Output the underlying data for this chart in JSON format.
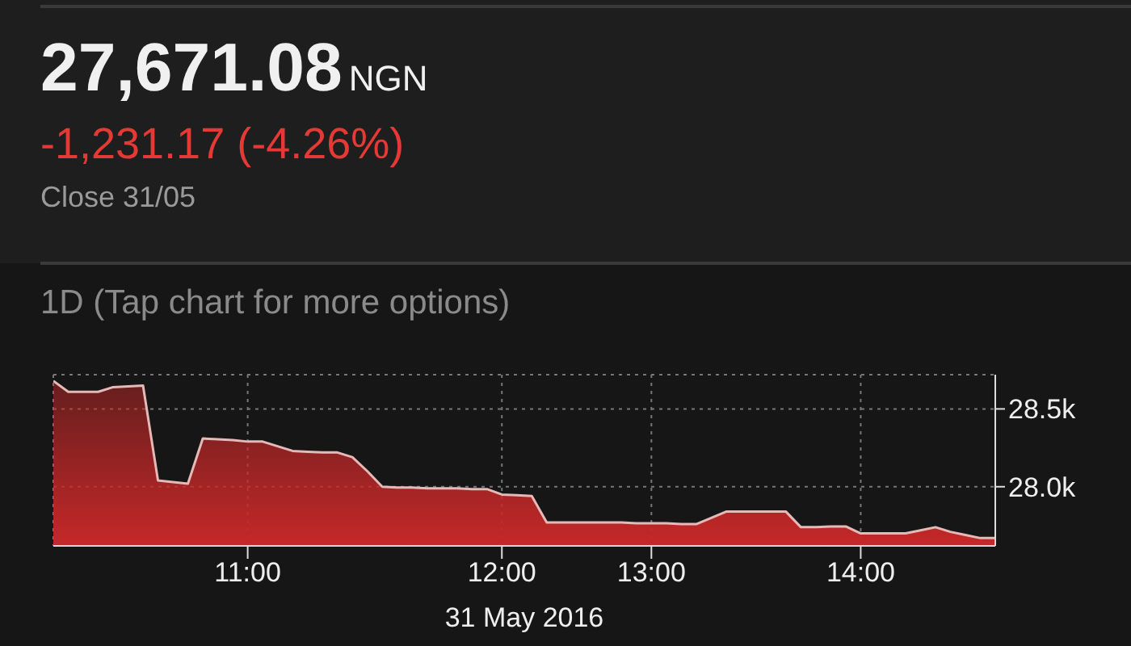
{
  "chart_data": {
    "type": "area",
    "title": "27,671.08",
    "subtitle": "1D (Tap chart for more options)",
    "annotations": [
      "NGN",
      "-1,231.17 (-4.26%)",
      "Close 31/05"
    ],
    "xlabel": "31 May 2016",
    "categories": [
      null,
      null,
      null,
      null,
      null,
      null,
      null,
      null,
      null,
      null,
      null,
      null,
      null,
      "11:00",
      null,
      null,
      null,
      null,
      null,
      null,
      null,
      null,
      null,
      null,
      null,
      null,
      null,
      null,
      null,
      null,
      "12:00",
      null,
      null,
      null,
      null,
      null,
      null,
      null,
      null,
      null,
      "13:00",
      null,
      null,
      null,
      null,
      null,
      null,
      null,
      null,
      null,
      null,
      null,
      null,
      null,
      "14:00",
      null,
      null,
      null,
      null,
      null,
      null,
      null,
      null,
      null
    ],
    "series": [
      {
        "color": "#c62828",
        "values": [
          28680,
          28610,
          28610,
          28610,
          28640,
          28645,
          28650,
          28040,
          28030,
          28020,
          28310,
          28305,
          28300,
          28290,
          28290,
          28260,
          28230,
          28225,
          28220,
          28220,
          28190,
          28100,
          28000,
          27995,
          27995,
          27990,
          27990,
          27990,
          27985,
          27985,
          27950,
          27945,
          27940,
          27770,
          27770,
          27770,
          27770,
          27770,
          27770,
          27765,
          27765,
          27765,
          27760,
          27760,
          27800,
          27840,
          27840,
          27840,
          27840,
          27840,
          27740,
          27740,
          27745,
          27745,
          27700,
          27700,
          27700,
          27700,
          27720,
          27740,
          27710,
          27690,
          27670,
          27670
        ]
      }
    ],
    "ylim": [
      27620,
      28720
    ],
    "yticks": [
      {
        "value": 28500,
        "label": "28.5k"
      },
      {
        "value": 28000,
        "label": "28.0k"
      }
    ],
    "grid": true
  }
}
